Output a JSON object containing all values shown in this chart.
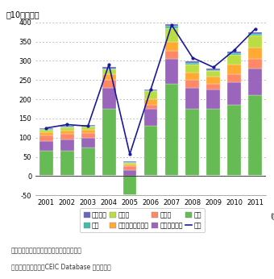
{
  "years": [
    2001,
    2002,
    2003,
    2004,
    2005,
    2006,
    2007,
    2008,
    2009,
    2010,
    2011
  ],
  "africa": [
    2,
    2,
    2,
    3,
    2,
    3,
    5,
    5,
    4,
    5,
    5
  ],
  "middle_east": [
    2,
    2,
    2,
    3,
    2,
    3,
    5,
    4,
    3,
    4,
    5
  ],
  "latin_am": [
    8,
    8,
    8,
    12,
    5,
    20,
    35,
    20,
    15,
    25,
    30
  ],
  "other_west": [
    8,
    8,
    8,
    15,
    5,
    15,
    25,
    20,
    18,
    25,
    30
  ],
  "canada": [
    15,
    15,
    12,
    20,
    10,
    10,
    20,
    20,
    15,
    20,
    25
  ],
  "asia_oceania": [
    25,
    30,
    25,
    55,
    15,
    45,
    65,
    55,
    50,
    60,
    70
  ],
  "europe": [
    65,
    65,
    75,
    175,
    -50,
    130,
    240,
    175,
    175,
    185,
    210
  ],
  "world": [
    125,
    134,
    130,
    290,
    57,
    225,
    393,
    308,
    283,
    328,
    383
  ],
  "colors": {
    "africa": "#6666bb",
    "middle_east": "#44bbaa",
    "latin_am": "#bbdd44",
    "other_west": "#ffaa33",
    "canada": "#ff8866",
    "asia_oceania": "#9966bb",
    "europe": "#66bb55"
  },
  "ylim": [
    -50,
    400
  ],
  "yticks": [
    -50,
    0,
    50,
    100,
    150,
    200,
    250,
    300,
    350,
    400
  ],
  "ylabel": "（10億ドル）",
  "world_color": "#1a1a99",
  "legend_labels": {
    "africa": "アフリカ",
    "middle_east": "中東",
    "latin_am": "中南米",
    "other_west": "その他西半球諸国",
    "canada": "カナダ",
    "asia_oceania": "アジア大洋州",
    "europe": "欧州",
    "world": "世界"
  },
  "note1": "備考：国際収支ベース、ネット、フロー。",
  "note2": "資料：米国商務省、CEIC Database から作成。"
}
